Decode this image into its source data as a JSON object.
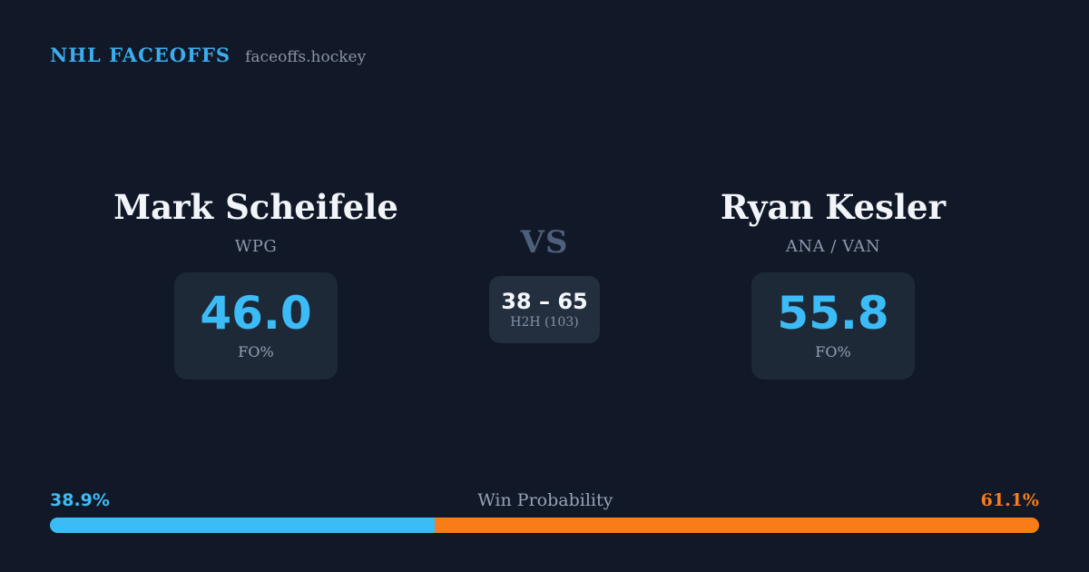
{
  "brand": {
    "title": "NHL FACEOFFS",
    "domain": "faceoffs.hockey"
  },
  "players": {
    "left": {
      "name": "Mark Scheifele",
      "team": "WPG",
      "stat_value": "46.0",
      "stat_label": "FO%"
    },
    "right": {
      "name": "Ryan Kesler",
      "team": "ANA / VAN",
      "stat_value": "55.8",
      "stat_label": "FO%"
    }
  },
  "center": {
    "vs_label": "VS",
    "h2h_score": "38 – 65",
    "h2h_label": "H2H (103)"
  },
  "win_probability": {
    "label": "Win Probability",
    "left_pct_label": "38.9%",
    "right_pct_label": "61.1%",
    "left_value": 38.9,
    "right_value": 61.1
  },
  "colors": {
    "background": "#111827",
    "card_background": "#1e2938",
    "center_card_background": "#232e3f",
    "accent_blue": "#3cbcf7",
    "brand_blue": "#3badee",
    "accent_orange": "#f87d18",
    "text_primary": "#f1f5f9",
    "text_muted": "#8b98ad",
    "vs_muted": "#4e5f7c"
  }
}
